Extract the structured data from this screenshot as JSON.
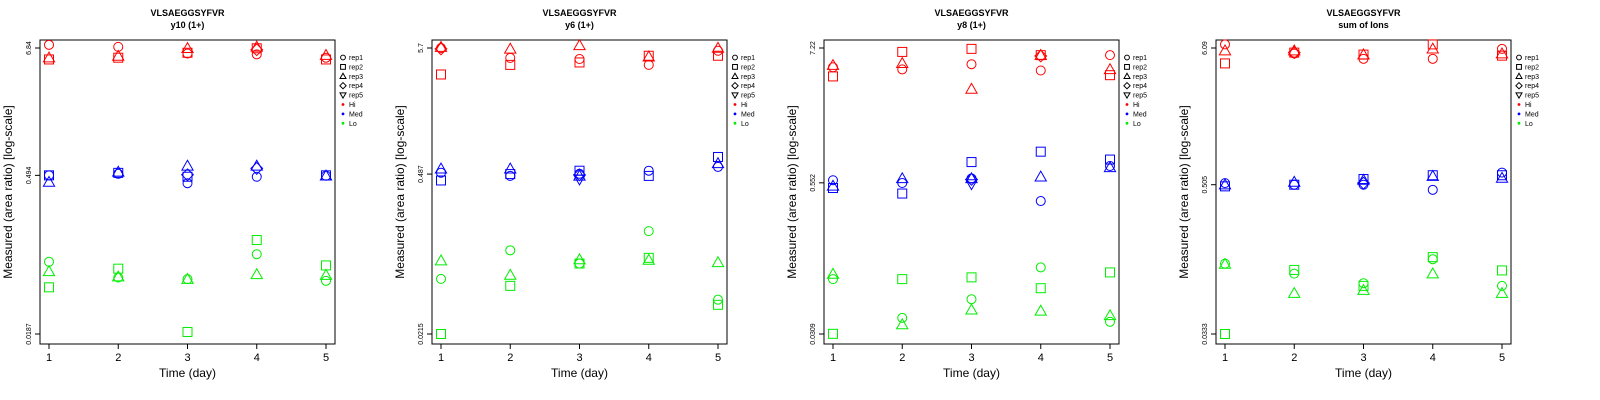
{
  "legend": {
    "shapes": [
      {
        "label": "rep1",
        "shape": "circle"
      },
      {
        "label": "rep2",
        "shape": "square"
      },
      {
        "label": "rep3",
        "shape": "triangle-up"
      },
      {
        "label": "rep4",
        "shape": "diamond"
      },
      {
        "label": "rep5",
        "shape": "triangle-down"
      }
    ],
    "colors": [
      {
        "label": "Hi",
        "color": "#ff0000"
      },
      {
        "label": "Med",
        "color": "#0000ff"
      },
      {
        "label": "Lo",
        "color": "#00ee00"
      }
    ]
  },
  "chart_data": [
    {
      "type": "scatter",
      "title": "VLSAEGGSYFVR",
      "subtitle": "y10 (1+)",
      "xlabel": "Time (day)",
      "ylabel": "Measured (area ratio) [log-scale]",
      "x_ticks": [
        1,
        2,
        3,
        4,
        5
      ],
      "y_ticks": [
        "0.0187",
        "0.494",
        "6.84"
      ],
      "y_scale": "log",
      "ylim": [
        0.0187,
        6.84
      ],
      "series": [
        {
          "group": "Hi",
          "shape": "circle",
          "points": [
            [
              1,
              7.3
            ],
            [
              2,
              7.0
            ],
            [
              3,
              6.1
            ],
            [
              4,
              6.0
            ],
            [
              5,
              5.6
            ]
          ]
        },
        {
          "group": "Hi",
          "shape": "square",
          "points": [
            [
              1,
              5.4
            ],
            [
              2,
              5.6
            ],
            [
              3,
              6.2
            ],
            [
              4,
              6.8
            ],
            [
              5,
              5.4
            ]
          ]
        },
        {
          "group": "Hi",
          "shape": "triangle-up",
          "points": [
            [
              1,
              5.6
            ],
            [
              2,
              5.8
            ],
            [
              3,
              6.8
            ],
            [
              4,
              7.0
            ],
            [
              5,
              5.9
            ]
          ]
        },
        {
          "group": "Hi",
          "shape": "diamond",
          "points": [
            [
              4,
              6.6
            ]
          ]
        },
        {
          "group": "Med",
          "shape": "circle",
          "points": [
            [
              1,
              0.494
            ],
            [
              2,
              0.51
            ],
            [
              3,
              0.42
            ],
            [
              4,
              0.48
            ],
            [
              5,
              0.49
            ]
          ]
        },
        {
          "group": "Med",
          "shape": "square",
          "points": [
            [
              1,
              0.494
            ],
            [
              2,
              0.52
            ],
            [
              3,
              0.48
            ],
            [
              5,
              0.494
            ]
          ]
        },
        {
          "group": "Med",
          "shape": "triangle-up",
          "points": [
            [
              1,
              0.43
            ],
            [
              2,
              0.53
            ],
            [
              3,
              0.6
            ],
            [
              4,
              0.6
            ],
            [
              5,
              0.49
            ]
          ]
        },
        {
          "group": "Med",
          "shape": "diamond",
          "points": [
            [
              3,
              0.5
            ],
            [
              4,
              0.57
            ]
          ]
        },
        {
          "group": "Lo",
          "shape": "circle",
          "points": [
            [
              1,
              0.083
            ],
            [
              2,
              0.06
            ],
            [
              3,
              0.058
            ],
            [
              4,
              0.097
            ],
            [
              5,
              0.056
            ]
          ]
        },
        {
          "group": "Lo",
          "shape": "square",
          "points": [
            [
              1,
              0.049
            ],
            [
              2,
              0.072
            ],
            [
              3,
              0.0195
            ],
            [
              4,
              0.13
            ],
            [
              5,
              0.077
            ]
          ]
        },
        {
          "group": "Lo",
          "shape": "triangle-up",
          "points": [
            [
              1,
              0.068
            ],
            [
              2,
              0.061
            ],
            [
              3,
              0.058
            ],
            [
              4,
              0.064
            ],
            [
              5,
              0.063
            ]
          ]
        }
      ]
    },
    {
      "type": "scatter",
      "title": "VLSAEGGSYFVR",
      "subtitle": "y6 (1+)",
      "xlabel": "Time (day)",
      "ylabel": "Measured (area ratio) [log-scale]",
      "x_ticks": [
        1,
        2,
        3,
        4,
        5
      ],
      "y_ticks": [
        "0.0215",
        "0.487",
        "5.7"
      ],
      "y_scale": "log",
      "ylim": [
        0.0215,
        5.7
      ],
      "series": [
        {
          "group": "Hi",
          "shape": "circle",
          "points": [
            [
              1,
              5.7
            ],
            [
              2,
              4.7
            ],
            [
              3,
              4.6
            ],
            [
              4,
              4.1
            ],
            [
              5,
              5.4
            ]
          ]
        },
        {
          "group": "Hi",
          "shape": "square",
          "points": [
            [
              1,
              3.4
            ],
            [
              2,
              4.1
            ],
            [
              3,
              4.3
            ],
            [
              4,
              4.9
            ],
            [
              5,
              4.9
            ]
          ]
        },
        {
          "group": "Hi",
          "shape": "triangle-up",
          "points": [
            [
              1,
              5.8
            ],
            [
              2,
              5.6
            ],
            [
              3,
              6.0
            ],
            [
              4,
              4.8
            ],
            [
              5,
              5.7
            ]
          ]
        },
        {
          "group": "Hi",
          "shape": "diamond",
          "points": [
            [
              1,
              5.6
            ]
          ]
        },
        {
          "group": "Med",
          "shape": "circle",
          "points": [
            [
              1,
              0.5
            ],
            [
              2,
              0.47
            ],
            [
              3,
              0.49
            ],
            [
              4,
              0.52
            ],
            [
              5,
              0.56
            ]
          ]
        },
        {
          "group": "Med",
          "shape": "square",
          "points": [
            [
              1,
              0.43
            ],
            [
              2,
              0.487
            ],
            [
              3,
              0.52
            ],
            [
              4,
              0.47
            ],
            [
              5,
              0.68
            ]
          ]
        },
        {
          "group": "Med",
          "shape": "triangle-up",
          "points": [
            [
              1,
              0.54
            ],
            [
              2,
              0.54
            ],
            [
              3,
              0.47
            ],
            [
              5,
              0.6
            ]
          ]
        },
        {
          "group": "Med",
          "shape": "diamond",
          "points": [
            [
              3,
              0.48
            ]
          ]
        },
        {
          "group": "Med",
          "shape": "triangle-down",
          "points": [
            [
              3,
              0.44
            ]
          ]
        },
        {
          "group": "Lo",
          "shape": "circle",
          "points": [
            [
              1,
              0.063
            ],
            [
              2,
              0.11
            ],
            [
              3,
              0.085
            ],
            [
              4,
              0.16
            ],
            [
              5,
              0.042
            ]
          ]
        },
        {
          "group": "Lo",
          "shape": "square",
          "points": [
            [
              1,
              0.0215
            ],
            [
              2,
              0.055
            ],
            [
              3,
              0.085
            ],
            [
              4,
              0.095
            ],
            [
              5,
              0.038
            ]
          ]
        },
        {
          "group": "Lo",
          "shape": "triangle-up",
          "points": [
            [
              1,
              0.09
            ],
            [
              2,
              0.068
            ],
            [
              3,
              0.092
            ],
            [
              4,
              0.091
            ],
            [
              5,
              0.087
            ]
          ]
        }
      ]
    },
    {
      "type": "scatter",
      "title": "VLSAEGGSYFVR",
      "subtitle": "y8 (1+)",
      "xlabel": "Time (day)",
      "ylabel": "Measured (area ratio) [log-scale]",
      "x_ticks": [
        1,
        2,
        3,
        4,
        5
      ],
      "y_ticks": [
        "0.0309",
        "0.552",
        "7.22"
      ],
      "y_scale": "log",
      "ylim": [
        0.0309,
        7.22
      ],
      "series": [
        {
          "group": "Hi",
          "shape": "circle",
          "points": [
            [
              1,
              5.0
            ],
            [
              2,
              4.8
            ],
            [
              3,
              5.3
            ],
            [
              4,
              4.7
            ],
            [
              5,
              6.3
            ]
          ]
        },
        {
          "group": "Hi",
          "shape": "square",
          "points": [
            [
              1,
              4.2
            ],
            [
              2,
              6.7
            ],
            [
              3,
              7.1
            ],
            [
              4,
              6.3
            ],
            [
              5,
              4.3
            ]
          ]
        },
        {
          "group": "Hi",
          "shape": "triangle-up",
          "points": [
            [
              1,
              5.2
            ],
            [
              2,
              5.4
            ],
            [
              3,
              3.3
            ],
            [
              4,
              6.3
            ],
            [
              5,
              4.8
            ]
          ]
        },
        {
          "group": "Hi",
          "shape": "diamond",
          "points": [
            [
              4,
              6.2
            ]
          ]
        },
        {
          "group": "Med",
          "shape": "circle",
          "points": [
            [
              1,
              0.58
            ],
            [
              2,
              0.55
            ],
            [
              3,
              0.6
            ],
            [
              4,
              0.39
            ],
            [
              5,
              0.76
            ]
          ]
        },
        {
          "group": "Med",
          "shape": "square",
          "points": [
            [
              1,
              0.5
            ],
            [
              2,
              0.45
            ],
            [
              3,
              0.82
            ],
            [
              4,
              1.0
            ],
            [
              5,
              0.86
            ]
          ]
        },
        {
          "group": "Med",
          "shape": "triangle-up",
          "points": [
            [
              1,
              0.52
            ],
            [
              2,
              0.6
            ],
            [
              3,
              0.6
            ],
            [
              4,
              0.62
            ],
            [
              5,
              0.74
            ]
          ]
        },
        {
          "group": "Med",
          "shape": "diamond",
          "points": [
            [
              3,
              0.59
            ]
          ]
        },
        {
          "group": "Med",
          "shape": "triangle-down",
          "points": [
            [
              3,
              0.54
            ]
          ]
        },
        {
          "group": "Lo",
          "shape": "circle",
          "points": [
            [
              1,
              0.088
            ],
            [
              2,
              0.042
            ],
            [
              3,
              0.06
            ],
            [
              4,
              0.11
            ],
            [
              5,
              0.039
            ]
          ]
        },
        {
          "group": "Lo",
          "shape": "square",
          "points": [
            [
              1,
              0.031
            ],
            [
              2,
              0.088
            ],
            [
              3,
              0.091
            ],
            [
              4,
              0.074
            ],
            [
              5,
              0.1
            ]
          ]
        },
        {
          "group": "Lo",
          "shape": "triangle-up",
          "points": [
            [
              1,
              0.097
            ],
            [
              2,
              0.037
            ],
            [
              3,
              0.049
            ],
            [
              4,
              0.048
            ],
            [
              5,
              0.044
            ]
          ]
        }
      ]
    },
    {
      "type": "scatter",
      "title": "VLSAEGGSYFVR",
      "subtitle": "sum of Ions",
      "xlabel": "Time (day)",
      "ylabel": "Measured (area ratio) [log-scale]",
      "x_ticks": [
        1,
        2,
        3,
        4,
        5
      ],
      "y_ticks": [
        "0.0333",
        "0.505",
        "6.09"
      ],
      "y_scale": "log",
      "ylim": [
        0.0333,
        6.09
      ],
      "series": [
        {
          "group": "Hi",
          "shape": "circle",
          "points": [
            [
              1,
              6.5
            ],
            [
              2,
              5.5
            ],
            [
              3,
              5.0
            ],
            [
              4,
              5.0
            ],
            [
              5,
              6.0
            ]
          ]
        },
        {
          "group": "Hi",
          "shape": "square",
          "points": [
            [
              1,
              4.6
            ],
            [
              2,
              5.6
            ],
            [
              3,
              5.4
            ],
            [
              4,
              6.5
            ],
            [
              5,
              5.3
            ]
          ]
        },
        {
          "group": "Hi",
          "shape": "triangle-up",
          "points": [
            [
              1,
              5.8
            ],
            [
              2,
              5.8
            ],
            [
              3,
              5.4
            ],
            [
              4,
              6.0
            ],
            [
              5,
              5.5
            ]
          ]
        },
        {
          "group": "Hi",
          "shape": "diamond",
          "points": [
            [
              2,
              5.6
            ]
          ]
        },
        {
          "group": "Med",
          "shape": "circle",
          "points": [
            [
              1,
              0.52
            ],
            [
              2,
              0.505
            ],
            [
              3,
              0.505
            ],
            [
              4,
              0.46
            ],
            [
              5,
              0.63
            ]
          ]
        },
        {
          "group": "Med",
          "shape": "square",
          "points": [
            [
              1,
              0.49
            ],
            [
              2,
              0.505
            ],
            [
              3,
              0.56
            ],
            [
              4,
              0.6
            ],
            [
              5,
              0.6
            ]
          ]
        },
        {
          "group": "Med",
          "shape": "triangle-up",
          "points": [
            [
              1,
              0.505
            ],
            [
              2,
              0.53
            ],
            [
              3,
              0.55
            ],
            [
              4,
              0.59
            ],
            [
              5,
              0.57
            ]
          ]
        },
        {
          "group": "Med",
          "shape": "diamond",
          "points": [
            [
              3,
              0.52
            ]
          ]
        },
        {
          "group": "Lo",
          "shape": "circle",
          "points": [
            [
              1,
              0.12
            ],
            [
              2,
              0.1
            ],
            [
              3,
              0.084
            ],
            [
              4,
              0.13
            ],
            [
              5,
              0.08
            ]
          ]
        },
        {
          "group": "Lo",
          "shape": "square",
          "points": [
            [
              1,
              0.0333
            ],
            [
              2,
              0.107
            ],
            [
              3,
              0.08
            ],
            [
              4,
              0.135
            ],
            [
              5,
              0.106
            ]
          ]
        },
        {
          "group": "Lo",
          "shape": "triangle-up",
          "points": [
            [
              1,
              0.119
            ],
            [
              2,
              0.07
            ],
            [
              3,
              0.074
            ],
            [
              4,
              0.1
            ],
            [
              5,
              0.07
            ]
          ]
        }
      ]
    }
  ]
}
